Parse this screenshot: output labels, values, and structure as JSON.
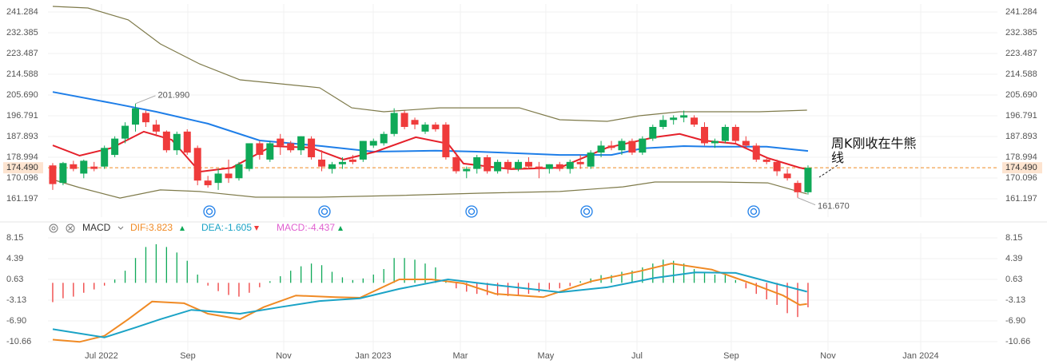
{
  "chart_data": [
    {
      "type": "candlestick",
      "x": [
        0,
        1,
        2,
        3,
        4,
        5,
        6,
        7,
        8,
        9,
        10,
        11,
        12,
        13,
        14,
        15,
        16,
        17,
        18,
        19,
        20,
        21,
        22,
        23,
        24,
        25,
        26,
        27,
        28,
        29,
        30,
        31,
        32,
        33,
        34,
        35,
        36,
        37,
        38,
        39,
        40,
        41,
        42,
        43,
        44,
        45,
        46,
        47,
        48,
        49,
        50,
        51,
        52,
        53,
        54,
        55,
        56,
        57,
        58,
        59,
        60,
        61,
        62,
        63,
        64,
        65,
        66,
        67,
        68,
        69,
        70,
        71,
        72,
        73
      ],
      "open": [
        175.5,
        168,
        176,
        172,
        175,
        175,
        180,
        187,
        193,
        198,
        193,
        190,
        182,
        190,
        183,
        169,
        168,
        172,
        170,
        174,
        185,
        178,
        187,
        185,
        182,
        187,
        178,
        174,
        176,
        178,
        178,
        184,
        185,
        189,
        198,
        195,
        190,
        193,
        193,
        179,
        173,
        174,
        179,
        173,
        177,
        174,
        177,
        175,
        174,
        176,
        174,
        177,
        175,
        181,
        184,
        182,
        186,
        181,
        187,
        192,
        195,
        196,
        196,
        192,
        185,
        186,
        192,
        186,
        184,
        178,
        177,
        172,
        168,
        164
      ],
      "high": [
        176.5,
        177,
        177.5,
        178,
        177,
        184,
        188,
        194,
        201.99,
        199,
        195,
        190.5,
        190,
        191,
        184,
        171,
        174,
        178,
        177,
        185,
        186,
        186,
        189,
        186,
        188,
        188,
        182,
        177,
        179,
        180,
        186,
        187,
        190,
        200,
        199,
        196,
        194,
        194,
        194,
        181,
        175,
        180,
        180,
        178,
        178,
        178,
        179,
        177,
        176,
        177,
        178,
        180,
        182,
        186,
        186,
        187,
        187,
        188,
        193,
        197,
        197,
        199,
        197,
        194,
        187,
        193,
        193,
        188,
        185,
        179,
        178,
        174,
        169,
        175.5
      ],
      "low": [
        165,
        167,
        173,
        170,
        173,
        174,
        179,
        185,
        190,
        192,
        188,
        181,
        180,
        180,
        167,
        166,
        165,
        168,
        169,
        173,
        178,
        177,
        180,
        181,
        180,
        178,
        173,
        172,
        174,
        176,
        177,
        183,
        184,
        188,
        191,
        191,
        189,
        190,
        178,
        172,
        170,
        172,
        172,
        172,
        172,
        173,
        174,
        170,
        172,
        173,
        172,
        174,
        174,
        179,
        182,
        180,
        180,
        180,
        186,
        191,
        193,
        194,
        192,
        184,
        183,
        185,
        185,
        183,
        177,
        176,
        171,
        169,
        161.67,
        163
      ],
      "close": [
        167.5,
        176.5,
        174,
        177.5,
        174,
        183,
        187,
        192.5,
        200,
        194,
        190,
        182,
        189,
        181,
        169,
        167,
        172,
        170,
        176,
        185,
        180,
        185,
        184,
        182,
        188,
        179,
        175,
        176,
        177,
        177,
        186,
        186,
        189,
        198,
        192,
        193,
        193,
        191,
        179,
        173,
        174,
        179,
        173,
        177,
        174,
        177,
        175,
        174,
        176,
        174,
        177,
        176,
        181,
        184,
        183,
        186,
        181,
        187,
        192,
        195,
        196,
        197,
        193,
        185,
        186,
        192,
        186,
        184,
        178,
        177,
        173,
        170,
        164,
        174.49
      ],
      "up_color": "#0fa958",
      "down_color": "#ef3b3b",
      "series": [
        {
          "color": "#7e7a4a",
          "x": [
            0,
            3.4,
            7.3,
            10.4,
            14.2,
            18.1,
            22,
            25.8,
            28.9,
            32,
            37.4,
            45.1,
            49,
            53.6,
            56.7,
            60.6,
            68.3,
            72.9
          ],
          "values": [
            243.7,
            243,
            237.9,
            227.6,
            219,
            212.2,
            210.5,
            208.8,
            200.2,
            198.5,
            200.2,
            200.2,
            195.1,
            194.4,
            196.8,
            198.5,
            198.5,
            199.2
          ]
        },
        {
          "color": "#7e7a4a",
          "x": [
            0,
            2.6,
            6.5,
            10.4,
            14.2,
            19.6,
            25.8,
            33.5,
            41.3,
            49,
            55.1,
            58.2,
            64.4,
            69.1,
            72.9
          ],
          "values": [
            169.4,
            166,
            161.5,
            165,
            164.3,
            161.9,
            161.9,
            162.6,
            163.6,
            164.3,
            166.3,
            168.4,
            168.4,
            168,
            163.3
          ]
        },
        {
          "color": "#1e7ee8",
          "x": [
            0,
            6,
            10,
            15,
            20,
            26,
            31,
            37,
            41,
            49,
            54,
            57,
            61,
            64,
            69,
            73
          ],
          "values": [
            207,
            202,
            198.5,
            193.4,
            186.2,
            183.8,
            181.4,
            181.8,
            181.4,
            180,
            180,
            182.8,
            183.8,
            183.5,
            183.5,
            181.7
          ]
        },
        {
          "color": "#e5202a",
          "x": [
            0,
            2.6,
            5.7,
            8.8,
            11.5,
            14.2,
            17.3,
            21.2,
            25,
            28.1,
            31.2,
            35.1,
            38.2,
            39.7,
            44.3,
            49,
            53.6,
            58.2,
            60.6,
            62.9,
            66,
            69.1,
            72.2,
            72.9
          ],
          "values": [
            184.1,
            179.7,
            183,
            190,
            186.5,
            172.8,
            174.5,
            183.8,
            183.1,
            178,
            181.4,
            187.6,
            184.8,
            176.3,
            173.9,
            174.5,
            183.1,
            187.6,
            189,
            186.2,
            184.8,
            178.7,
            174.5,
            173.9
          ]
        }
      ],
      "annotations": [
        {
          "label": "201.990",
          "value": 201.99,
          "x": 8
        },
        {
          "label": "161.670",
          "value": 161.67,
          "x": 72
        }
      ],
      "last_price": {
        "value": 174.49,
        "label": "174.490",
        "color": "#f08a24"
      },
      "note": "周K刚收在牛熊线",
      "xlim": [
        -0.46,
        91.31
      ],
      "ylim": [
        153.33,
        244.71
      ],
      "yticks": [
        241.284,
        232.385,
        223.487,
        214.588,
        {
          "value": 205.69,
          "label": "205.690"
        },
        196.791,
        187.893,
        178.994,
        170.096,
        161.197
      ],
      "grid": true
    },
    {
      "type": "macd",
      "title": "MACD",
      "histogram": {
        "up_color": "#0fa958",
        "down_color": "#ef3b3b",
        "values": [
          -3.5,
          -2.8,
          -2.5,
          -1.8,
          -1.2,
          -0.5,
          0.6,
          2.2,
          4.5,
          6.5,
          7,
          6.5,
          5.5,
          4,
          1.5,
          -0.5,
          -1.5,
          -2.2,
          -2.5,
          -1.8,
          -0.8,
          0.3,
          1.2,
          2.2,
          3,
          3.5,
          3.2,
          2,
          1,
          0.5,
          0.8,
          1.5,
          2.5,
          4.5,
          4.5,
          4.2,
          3.5,
          2.8,
          0.6,
          -1,
          -1.6,
          -2,
          -2.2,
          -2.3,
          -2.4,
          -2.2,
          -2,
          -1.7,
          -1.2,
          -1,
          -0.6,
          0.3,
          0.8,
          1.4,
          1.4,
          2,
          2.2,
          2.8,
          3.5,
          4.2,
          4,
          3.5,
          2.5,
          1.8,
          1.5,
          1.6,
          0.5,
          -1,
          -2,
          -3,
          -4,
          -5.5,
          -6.2,
          -4.437
        ],
        "current": -4.437,
        "name": "MACD:",
        "color": "#e060d0",
        "trend": "up"
      },
      "series": [
        {
          "name": "DIF:",
          "color": "#f08a24",
          "trend": "up",
          "current": -3.823,
          "x": [
            0,
            2.6,
            5,
            7.3,
            9.6,
            12.7,
            15,
            18.1,
            20.4,
            23.5,
            27.3,
            29.7,
            33.5,
            36.6,
            39.7,
            42.8,
            47.4,
            52.1,
            56.7,
            59.8,
            63.7,
            67.5,
            70.6,
            72.2,
            72.9
          ],
          "values": [
            -10.3,
            -10.7,
            -9.6,
            -6.6,
            -3.4,
            -3.7,
            -5.6,
            -6.6,
            -4.4,
            -2.3,
            -2.6,
            -2.7,
            0.63,
            0.63,
            -0.1,
            -2,
            -2.6,
            0.3,
            2.1,
            3.5,
            2.4,
            -0.1,
            -2.3,
            -4,
            -3.823
          ]
        },
        {
          "name": "DEA:",
          "color": "#1ba3c6",
          "trend": "down",
          "current": -1.605,
          "x": [
            0,
            5,
            8,
            10.4,
            13.4,
            18.1,
            22,
            25.8,
            29.7,
            33.5,
            38.2,
            42.8,
            49,
            53.6,
            58.2,
            62.1,
            66,
            69.8,
            72.9
          ],
          "values": [
            -8.4,
            -9.9,
            -8.1,
            -6.6,
            -4.9,
            -5.6,
            -4.4,
            -3.3,
            -2.8,
            -1.1,
            0.63,
            -0.4,
            -1.7,
            -0.8,
            0.9,
            1.9,
            1.8,
            -0.1,
            -1.605
          ]
        }
      ],
      "xlim": [
        -0.46,
        91.31
      ],
      "xticks": [
        {
          "value": 4.71,
          "label": "Jul 2022"
        },
        {
          "value": 13.06,
          "label": "Sep"
        },
        {
          "value": 22.33,
          "label": "Nov"
        },
        {
          "value": 30.98,
          "label": "Jan 2023"
        },
        {
          "value": 39.4,
          "label": "Mar"
        },
        {
          "value": 47.66,
          "label": "May"
        },
        {
          "value": 56.47,
          "label": "Jul"
        },
        {
          "value": 65.58,
          "label": "Sep"
        },
        {
          "value": 74.93,
          "label": "Nov"
        },
        {
          "value": 83.89,
          "label": "Jan 2024"
        }
      ],
      "ylim": [
        -12.4,
        9.02
      ],
      "yticks": [
        8.15,
        4.39,
        0.63,
        -3.13,
        {
          "value": -6.9,
          "label": "-6.90"
        },
        -10.66
      ],
      "grid": true
    }
  ]
}
